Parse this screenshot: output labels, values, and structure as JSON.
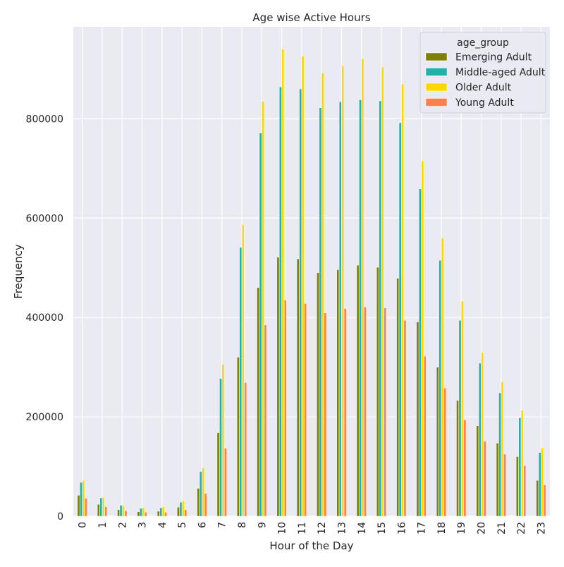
{
  "chart_data": {
    "type": "bar",
    "title": "Age wise Active Hours",
    "xlabel": "Hour of the Day",
    "ylabel": "Frequency",
    "categories": [
      "0",
      "1",
      "2",
      "3",
      "4",
      "5",
      "6",
      "7",
      "8",
      "9",
      "10",
      "11",
      "12",
      "13",
      "14",
      "15",
      "16",
      "17",
      "18",
      "19",
      "20",
      "21",
      "22",
      "23"
    ],
    "ylim": [
      0,
      985000
    ],
    "yticks": [
      0,
      200000,
      400000,
      600000,
      800000
    ],
    "ytick_labels": [
      "0",
      "200000",
      "400000",
      "600000",
      "800000"
    ],
    "grid": true,
    "legend": {
      "title": "age_group",
      "placement": "top-right"
    },
    "series": [
      {
        "name": "Emerging Adult",
        "color": "#808000",
        "values": [
          42000,
          24000,
          13000,
          9000,
          10000,
          18000,
          56000,
          168000,
          320000,
          460000,
          521000,
          518000,
          490000,
          496000,
          505000,
          501000,
          479000,
          391000,
          300000,
          233000,
          182000,
          147000,
          120000,
          72000
        ]
      },
      {
        "name": "Middle-aged Adult",
        "color": "#20b2aa",
        "values": [
          68000,
          37000,
          22000,
          16000,
          17000,
          28000,
          90000,
          277000,
          541000,
          771000,
          864000,
          860000,
          822000,
          834000,
          838000,
          836000,
          792000,
          659000,
          515000,
          394000,
          308000,
          248000,
          198000,
          128000
        ]
      },
      {
        "name": "Older Adult",
        "color": "#ffd700",
        "values": [
          72000,
          38000,
          22000,
          17000,
          19000,
          31000,
          97000,
          306000,
          587000,
          835000,
          940000,
          926000,
          892000,
          907000,
          921000,
          904000,
          870000,
          715000,
          560000,
          433000,
          330000,
          271000,
          213000,
          138000
        ]
      },
      {
        "name": "Young Adult",
        "color": "#ff7f50",
        "values": [
          36000,
          19000,
          11000,
          8000,
          8000,
          13000,
          46000,
          137000,
          269000,
          385000,
          435000,
          428000,
          409000,
          418000,
          421000,
          419000,
          394000,
          322000,
          258000,
          194000,
          151000,
          125000,
          102000,
          63000
        ]
      }
    ]
  }
}
